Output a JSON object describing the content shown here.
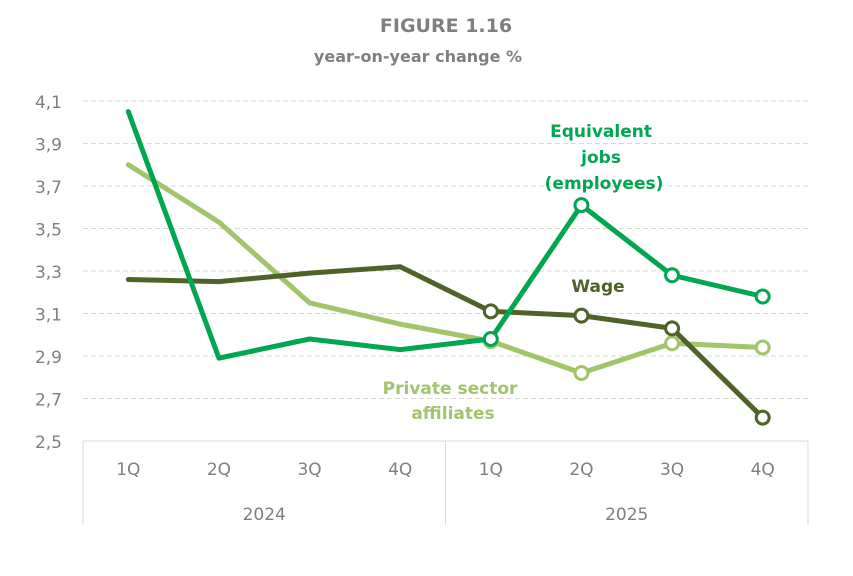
{
  "chart_data": {
    "type": "line",
    "title": "FIGURE 1.16",
    "subtitle": "year-on-year change %",
    "categories": [
      "1Q",
      "2Q",
      "3Q",
      "4Q",
      "1Q",
      "2Q",
      "3Q",
      "4Q"
    ],
    "groups": [
      {
        "label": "2024",
        "count": 4
      },
      {
        "label": "2025",
        "count": 4
      }
    ],
    "ylim": [
      2.5,
      4.1
    ],
    "yticks": [
      "2,5",
      "2,7",
      "2,9",
      "3,1",
      "3,3",
      "3,5",
      "3,7",
      "3,9",
      "4,1"
    ],
    "grid": true,
    "series": [
      {
        "name": "Equivalent jobs (employees)",
        "label_lines": [
          "Equivalent",
          "jobs",
          "(employees)"
        ],
        "color": "#00a650",
        "values": [
          4.05,
          2.89,
          2.98,
          2.93,
          2.98,
          3.61,
          3.28,
          3.18
        ]
      },
      {
        "name": "Wage",
        "label_lines": [
          "Wage"
        ],
        "color": "#4f6228",
        "values": [
          3.26,
          3.25,
          3.29,
          3.32,
          3.11,
          3.09,
          3.03,
          2.61
        ]
      },
      {
        "name": "Private sector affiliates",
        "label_lines": [
          "Private sector",
          "affiliates"
        ],
        "color": "#a2c46a",
        "values": [
          3.8,
          3.53,
          3.15,
          3.05,
          2.97,
          2.82,
          2.96,
          2.94
        ]
      }
    ],
    "markers_from_index": 4
  }
}
